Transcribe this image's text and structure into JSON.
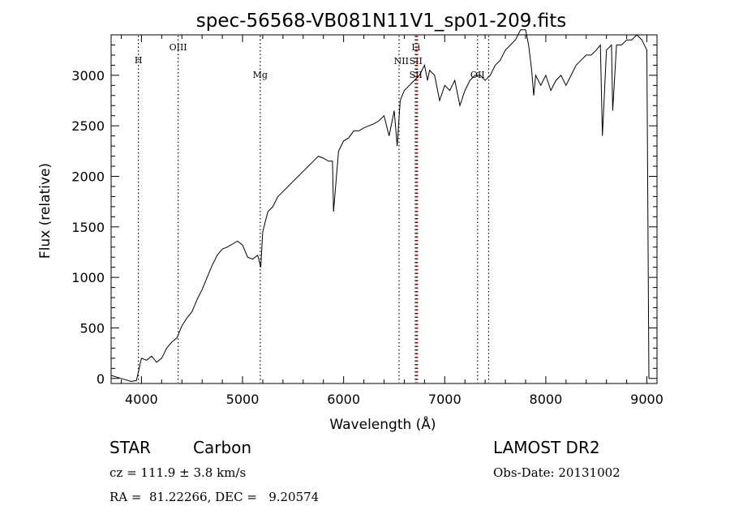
{
  "chart_data": {
    "type": "line",
    "title": "spec-56568-VB081N11V1_sp01-209.fits",
    "xlabel": "Wavelength (Å)",
    "ylabel": "Flux (relative)",
    "xlim": [
      3700,
      9100
    ],
    "ylim": [
      -50,
      3400
    ],
    "xticks": [
      4000,
      5000,
      6000,
      7000,
      8000,
      9000
    ],
    "yticks": [
      0,
      500,
      1000,
      1500,
      2000,
      2500,
      3000
    ],
    "series": [
      {
        "x": [
          3700,
          3800,
          3900,
          3950,
          4000,
          4050,
          4100,
          4150,
          4200,
          4250,
          4300,
          4350,
          4400,
          4450,
          4500,
          4550,
          4600,
          4650,
          4700,
          4750,
          4800,
          4850,
          4900,
          4950,
          5000,
          5050,
          5100,
          5150,
          5180,
          5200,
          5250,
          5300,
          5350,
          5400,
          5450,
          5500,
          5550,
          5600,
          5650,
          5700,
          5750,
          5800,
          5850,
          5890,
          5900,
          5950,
          6000,
          6050,
          6100,
          6150,
          6200,
          6250,
          6300,
          6350,
          6400,
          6450,
          6500,
          6530,
          6560,
          6600,
          6650,
          6700,
          6750,
          6800,
          6830,
          6850,
          6900,
          6950,
          7000,
          7050,
          7100,
          7150,
          7200,
          7250,
          7300,
          7350,
          7400,
          7450,
          7500,
          7550,
          7600,
          7650,
          7700,
          7750,
          7800,
          7830,
          7860,
          7880,
          7900,
          7950,
          8000,
          8050,
          8100,
          8150,
          8200,
          8250,
          8300,
          8350,
          8400,
          8450,
          8500,
          8540,
          8560,
          8600,
          8650,
          8662,
          8700,
          8750,
          8800,
          8850,
          8900,
          8950,
          9000,
          9020
        ],
        "y": [
          30,
          0,
          -30,
          -20,
          200,
          180,
          220,
          160,
          200,
          300,
          360,
          400,
          520,
          600,
          660,
          780,
          880,
          1000,
          1120,
          1220,
          1280,
          1300,
          1330,
          1360,
          1320,
          1200,
          1180,
          1220,
          1100,
          1450,
          1650,
          1700,
          1800,
          1850,
          1900,
          1950,
          2000,
          2050,
          2100,
          2150,
          2200,
          2180,
          2150,
          2150,
          1650,
          2250,
          2350,
          2380,
          2450,
          2450,
          2480,
          2500,
          2520,
          2550,
          2600,
          2400,
          2650,
          2300,
          2750,
          2850,
          2900,
          2950,
          3000,
          3100,
          2950,
          3050,
          3000,
          2750,
          2900,
          2850,
          2950,
          2700,
          2850,
          2950,
          3000,
          3000,
          2950,
          3000,
          3100,
          3150,
          3250,
          3300,
          3350,
          3450,
          3450,
          3300,
          3050,
          2800,
          3000,
          2900,
          3000,
          2850,
          2950,
          3000,
          2900,
          3000,
          3100,
          3150,
          3200,
          3200,
          3250,
          3300,
          2400,
          3250,
          3300,
          2650,
          3300,
          3300,
          3350,
          3350,
          3400,
          3350,
          3250,
          0
        ]
      }
    ],
    "line_markers": [
      {
        "label": "H",
        "x": 3970,
        "color": "#000000"
      },
      {
        "label": "OIII",
        "x": 4363,
        "color": "#000000"
      },
      {
        "label": "Mg",
        "x": 5175,
        "color": "#000000"
      },
      {
        "label": "NII",
        "x": 6548,
        "color": "#000000"
      },
      {
        "label": "Li",
        "x": 6708,
        "color": "#000000"
      },
      {
        "label": "SII",
        "x": 6717,
        "color": "#000000"
      },
      {
        "label": "SII",
        "x": 6731,
        "color": "#000000"
      },
      {
        "label": "OII",
        "x": 7325,
        "color": "#000000"
      },
      {
        "label": "",
        "x": 7435,
        "color": "#000000"
      },
      {
        "label": "",
        "x": 6710,
        "color": "#cc0000"
      },
      {
        "label": "",
        "x": 6725,
        "color": "#cc0000"
      }
    ]
  },
  "footer": {
    "object_class": "STAR",
    "subclass": "Carbon",
    "survey": "LAMOST DR2",
    "cz": "cz = 111.9 ± 3.8 km/s",
    "obs_date": "Obs-Date: 20131002",
    "coords": "RA =  81.22266, DEC =   9.20574"
  }
}
